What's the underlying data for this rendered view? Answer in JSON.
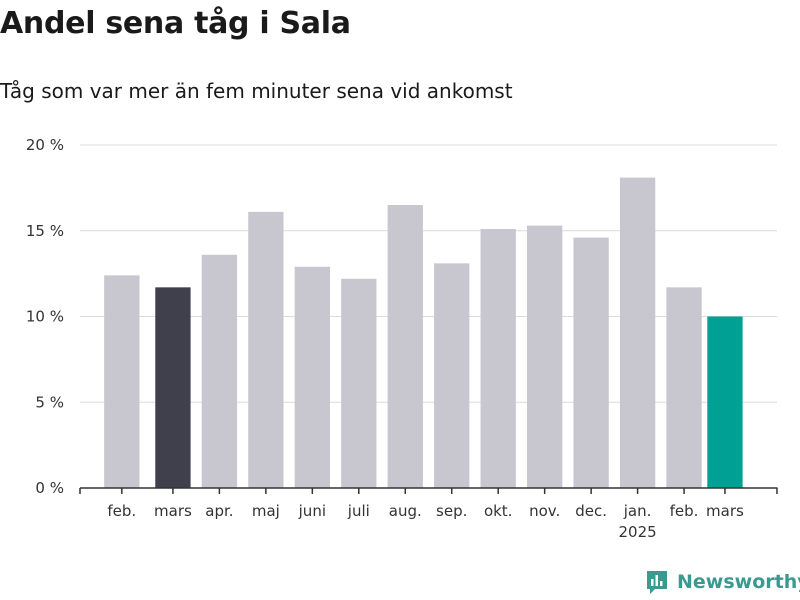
{
  "header": {
    "title": "Andel sena tåg i Sala",
    "subtitle": "Tåg som var mer än fem minuter sena vid ankomst"
  },
  "logo": {
    "text": "Newsworthy",
    "icon": "bar-chart-logo-icon",
    "color": "#3a9a90"
  },
  "colors": {
    "default": "#c8c7d0",
    "highlight_prev": "#403f4c",
    "highlight_current": "#00a195"
  },
  "chart_data": {
    "type": "bar",
    "title": "Andel sena tåg i Sala",
    "subtitle": "Tåg som var mer än fem minuter sena vid ankomst",
    "xlabel": "",
    "ylabel": "",
    "categories": [
      "feb.",
      "mars",
      "apr.",
      "maj",
      "juni",
      "juli",
      "aug.",
      "sep.",
      "okt.",
      "nov.",
      "dec.",
      "jan.",
      "feb.",
      "mars"
    ],
    "year_labels": [
      "",
      "",
      "",
      "",
      "",
      "",
      "",
      "",
      "",
      "",
      "",
      "2025",
      "",
      ""
    ],
    "values": [
      12.4,
      11.7,
      13.6,
      16.1,
      12.9,
      12.2,
      16.5,
      13.1,
      15.1,
      15.3,
      14.6,
      18.1,
      11.7,
      10.0
    ],
    "bar_styles": [
      "default",
      "highlight_prev",
      "default",
      "default",
      "default",
      "default",
      "default",
      "default",
      "default",
      "default",
      "default",
      "default",
      "default",
      "highlight_current"
    ],
    "ylim": [
      0,
      20
    ],
    "yticks": [
      0,
      5,
      10,
      15,
      20
    ],
    "ytick_labels": [
      "0 %",
      "5 %",
      "10 %",
      "15 %",
      "20 %"
    ],
    "grid": true,
    "legend": "none"
  }
}
